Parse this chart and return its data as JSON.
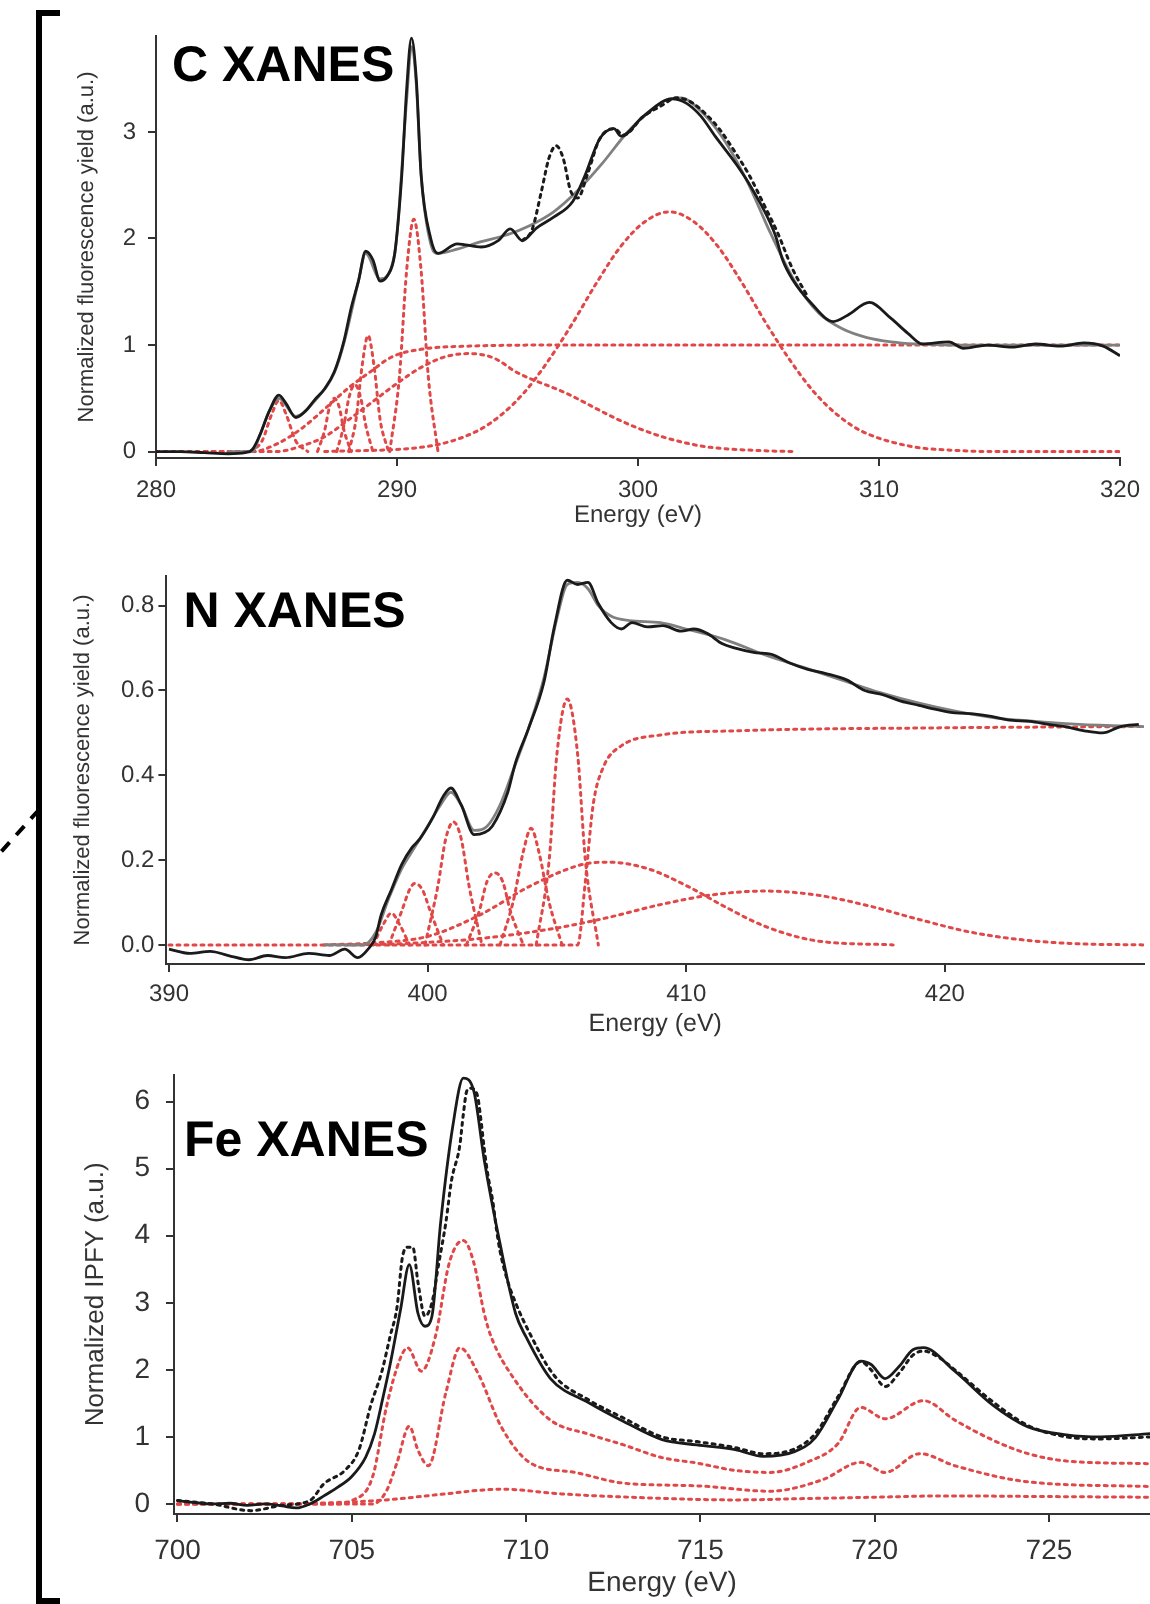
{
  "chart_data": [
    {
      "type": "line",
      "title": "C XANES",
      "xlabel": "Energy (eV)",
      "ylabel": "Normalized fluorescence yield (a.u.)",
      "xlim": [
        280,
        320
      ],
      "xticks": [
        280,
        290,
        300,
        310,
        320
      ],
      "ylim": [
        -0.06,
        3.9
      ],
      "yticks": [
        0,
        1,
        2,
        3
      ],
      "series": [
        {
          "color": "#1a1a1a",
          "line_style": "solid",
          "x": [
            280,
            281,
            282,
            283,
            283.7,
            284,
            284.3,
            284.7,
            285.1,
            285.4,
            285.8,
            286.2,
            286.6,
            287,
            287.4,
            287.8,
            288.1,
            288.4,
            288.7,
            289,
            289.3,
            289.6,
            289.9,
            290.2,
            290.4,
            290.6,
            290.8,
            291,
            291.4,
            291.7,
            292.5,
            293.5,
            294.2,
            294.7,
            295.2,
            295.8,
            296.5,
            297.3,
            297.8,
            298.4,
            299,
            299.3,
            300.2,
            301.4,
            302,
            302.6,
            303.2,
            304.1,
            304.7,
            305.7,
            306,
            306.4,
            307.2,
            308.1,
            308.7,
            309.6,
            310.5,
            311.2,
            311.8,
            312.9,
            313.5,
            314.5,
            315.5,
            316.5,
            317.5,
            318.5,
            319.3,
            320
          ],
          "values": [
            0,
            0,
            -0.01,
            -0.02,
            -0.01,
            0.02,
            0.15,
            0.38,
            0.53,
            0.45,
            0.32,
            0.38,
            0.49,
            0.59,
            0.75,
            1.04,
            1.35,
            1.6,
            1.88,
            1.8,
            1.6,
            1.65,
            1.85,
            2.6,
            3.4,
            3.88,
            3.5,
            2.6,
            2.0,
            1.86,
            1.95,
            1.92,
            1.98,
            2.09,
            1.98,
            2.1,
            2.2,
            2.35,
            2.59,
            2.93,
            3.03,
            2.96,
            3.14,
            3.31,
            3.27,
            3.15,
            2.96,
            2.69,
            2.48,
            2.03,
            1.8,
            1.62,
            1.39,
            1.22,
            1.28,
            1.4,
            1.25,
            1.11,
            1.01,
            1.03,
            0.97,
            1.0,
            0.98,
            1.01,
            0.99,
            1.02,
            0.99,
            0.9
          ]
        },
        {
          "color": "#1a1a1a",
          "line_style": "dotted",
          "x": [
            295.2,
            295.6,
            296,
            296.3,
            296.6,
            296.9,
            297.2,
            297.5,
            297.9,
            298.4,
            299,
            299.4,
            300.2,
            301,
            301.6,
            302.2,
            302.8,
            303.4,
            304,
            304.6,
            305.2,
            305.8,
            306.4,
            307
          ],
          "values": [
            1.98,
            2.08,
            2.45,
            2.75,
            2.87,
            2.75,
            2.45,
            2.38,
            2.6,
            2.93,
            3.03,
            2.97,
            3.14,
            3.25,
            3.32,
            3.28,
            3.17,
            3.02,
            2.82,
            2.6,
            2.33,
            2.05,
            1.72,
            1.47
          ]
        },
        {
          "color": "#808080",
          "line_style": "solid",
          "x": [
            283,
            284,
            284.3,
            284.7,
            285.1,
            285.8,
            286.6,
            287.4,
            287.8,
            288.4,
            288.7,
            289.3,
            289.9,
            290.4,
            290.6,
            290.8,
            291,
            291.4,
            291.7,
            292.5,
            293.5,
            294.5,
            295.5,
            296.5,
            297.5,
            298.5,
            299.5,
            300.5,
            301.3,
            301.8,
            302.5,
            303.5,
            304.5,
            305.5,
            306.5,
            307.5,
            308.5,
            309.5,
            310.5,
            311.5,
            313,
            320
          ],
          "values": [
            0,
            0,
            0.15,
            0.38,
            0.5,
            0.33,
            0.48,
            0.74,
            1.02,
            1.6,
            1.86,
            1.62,
            1.85,
            3.3,
            3.8,
            3.45,
            2.6,
            1.95,
            1.86,
            1.9,
            1.97,
            2.03,
            2.12,
            2.25,
            2.45,
            2.7,
            2.98,
            3.2,
            3.31,
            3.32,
            3.22,
            2.95,
            2.55,
            2.05,
            1.6,
            1.3,
            1.15,
            1.07,
            1.03,
            1.01,
            1.0,
            1.0
          ]
        },
        {
          "color": "#e04848",
          "line_style": "dotted",
          "x": [
            280,
            284,
            285,
            286,
            287,
            288,
            288.9,
            289.8,
            291,
            293,
            297,
            320
          ],
          "values": [
            0,
            0,
            0.07,
            0.21,
            0.4,
            0.6,
            0.75,
            0.89,
            0.96,
            0.99,
            1.0,
            1.0
          ]
        },
        {
          "color": "#e04848",
          "line_style": "dotted",
          "x": [
            283.9,
            284.4,
            284.8,
            285.1,
            285.4,
            285.8,
            286.3
          ],
          "values": [
            0,
            0.1,
            0.35,
            0.48,
            0.35,
            0.1,
            0
          ]
        },
        {
          "color": "#e04848",
          "line_style": "dotted",
          "x": [
            286.7,
            287,
            287.2,
            287.4,
            287.6,
            287.8,
            288.1
          ],
          "values": [
            0,
            0.2,
            0.42,
            0.5,
            0.42,
            0.2,
            0
          ]
        },
        {
          "color": "#e04848",
          "line_style": "dotted",
          "x": [
            287.5,
            287.8,
            288,
            288.25,
            288.5,
            288.7,
            289
          ],
          "values": [
            0,
            0.25,
            0.5,
            0.63,
            0.5,
            0.25,
            0
          ]
        },
        {
          "color": "#e04848",
          "line_style": "dotted",
          "x": [
            288,
            288.3,
            288.55,
            288.8,
            289.05,
            289.3,
            289.65
          ],
          "values": [
            0,
            0.3,
            0.8,
            1.09,
            0.8,
            0.3,
            0
          ]
        },
        {
          "color": "#e04848",
          "line_style": "dotted",
          "x": [
            289.7,
            290.1,
            290.4,
            290.7,
            291,
            291.3,
            291.7
          ],
          "values": [
            0,
            0.7,
            1.7,
            2.18,
            1.7,
            0.7,
            0
          ]
        },
        {
          "color": "#e04848",
          "line_style": "dotted",
          "x": [
            282,
            285,
            286,
            287,
            288,
            289,
            290,
            291,
            292,
            293,
            294,
            295,
            297,
            299,
            300,
            301,
            302,
            303,
            305,
            306.5
          ],
          "values": [
            0,
            0,
            0.05,
            0.14,
            0.3,
            0.47,
            0.64,
            0.79,
            0.89,
            0.92,
            0.88,
            0.74,
            0.55,
            0.32,
            0.22,
            0.14,
            0.08,
            0.04,
            0.01,
            0
          ]
        },
        {
          "color": "#e04848",
          "line_style": "dotted",
          "x": [
            287,
            291.3,
            293.3,
            294.3,
            295.3,
            296.3,
            297.3,
            298.3,
            299.3,
            300.3,
            301.3,
            302.3,
            303.3,
            304.3,
            305.3,
            306.3,
            307.3,
            308.3,
            309.3,
            311.3,
            313.3,
            315,
            320
          ],
          "values": [
            0,
            0.05,
            0.19,
            0.34,
            0.56,
            0.86,
            1.21,
            1.59,
            1.93,
            2.16,
            2.25,
            2.16,
            1.93,
            1.59,
            1.21,
            0.86,
            0.56,
            0.34,
            0.19,
            0.05,
            0.01,
            0,
            0
          ]
        }
      ]
    },
    {
      "type": "line",
      "title": "N XANES",
      "xlabel": "Energy (eV)",
      "ylabel": "Normalized fluorescence yield (a.u.)",
      "xlim": [
        389.9,
        427.7
      ],
      "xticks": [
        390,
        400,
        410,
        420
      ],
      "ylim": [
        -0.045,
        0.87
      ],
      "yticks": [
        {
          "value": 0,
          "label": "0.0"
        },
        0.2,
        0.4,
        0.6,
        0.8
      ],
      "series": [
        {
          "color": "#1a1a1a",
          "line_style": "solid",
          "x": [
            390,
            390.8,
            391.6,
            392.3,
            393.1,
            393.8,
            394.5,
            395.4,
            396.2,
            396.8,
            397.3,
            397.7,
            398,
            398.2,
            398.6,
            399,
            399.4,
            399.7,
            400.2,
            400.6,
            400.9,
            401.3,
            401.8,
            402.2,
            402.5,
            403.1,
            403.4,
            403.9,
            404.5,
            404.9,
            405.4,
            405.8,
            406.2,
            406.6,
            407.1,
            407.5,
            407.9,
            408.5,
            409.1,
            409.8,
            410.3,
            410.8,
            411.4,
            411.9,
            412.6,
            413.3,
            414,
            414.7,
            415.4,
            416.2,
            416.9,
            417.6,
            418.3,
            419,
            419.7,
            420.4,
            421.1,
            421.8,
            422.5,
            423.3,
            424,
            424.7,
            425.4,
            426.1,
            426.8,
            427.5
          ],
          "values": [
            -0.01,
            -0.02,
            -0.015,
            -0.025,
            -0.035,
            -0.025,
            -0.03,
            -0.02,
            -0.025,
            -0.01,
            -0.03,
            -0.01,
            0.02,
            0.07,
            0.13,
            0.19,
            0.23,
            0.25,
            0.3,
            0.35,
            0.37,
            0.33,
            0.26,
            0.265,
            0.28,
            0.36,
            0.43,
            0.51,
            0.62,
            0.75,
            0.86,
            0.85,
            0.855,
            0.805,
            0.76,
            0.745,
            0.76,
            0.75,
            0.753,
            0.74,
            0.745,
            0.735,
            0.71,
            0.7,
            0.69,
            0.685,
            0.665,
            0.65,
            0.64,
            0.625,
            0.6,
            0.59,
            0.575,
            0.565,
            0.555,
            0.547,
            0.545,
            0.539,
            0.53,
            0.527,
            0.52,
            0.514,
            0.505,
            0.5,
            0.515,
            0.52
          ]
        },
        {
          "color": "#808080",
          "line_style": "solid",
          "x": [
            396,
            397.5,
            398,
            398.5,
            399,
            399.5,
            400,
            400.5,
            400.9,
            401.3,
            401.8,
            402.3,
            402.8,
            403.3,
            403.9,
            404.5,
            405,
            405.4,
            405.8,
            406.2,
            406.6,
            407.1,
            407.8,
            409,
            410,
            411.5,
            413,
            414.5,
            416,
            417.5,
            419,
            420.5,
            422,
            424,
            426,
            427.7
          ],
          "values": [
            0,
            0,
            0.03,
            0.11,
            0.18,
            0.23,
            0.28,
            0.33,
            0.36,
            0.33,
            0.27,
            0.28,
            0.33,
            0.41,
            0.51,
            0.63,
            0.77,
            0.85,
            0.855,
            0.84,
            0.8,
            0.775,
            0.765,
            0.76,
            0.745,
            0.72,
            0.685,
            0.655,
            0.625,
            0.595,
            0.57,
            0.55,
            0.535,
            0.525,
            0.518,
            0.515
          ]
        },
        {
          "color": "#e04848",
          "line_style": "dotted",
          "x": [
            390,
            405.8,
            406.1,
            406.4,
            406.8,
            407.5,
            409,
            412,
            420,
            427.7
          ],
          "values": [
            0,
            0,
            0.15,
            0.33,
            0.42,
            0.47,
            0.495,
            0.505,
            0.512,
            0.515
          ]
        },
        {
          "color": "#e04848",
          "line_style": "dotted",
          "x": [
            404.2,
            404.7,
            405,
            405.4,
            405.8,
            406.1,
            406.6
          ],
          "values": [
            0,
            0.2,
            0.45,
            0.58,
            0.45,
            0.2,
            0
          ]
        },
        {
          "color": "#e04848",
          "line_style": "dotted",
          "x": [
            402.8,
            403.3,
            403.7,
            404,
            404.3,
            404.7,
            405.2
          ],
          "values": [
            0,
            0.1,
            0.22,
            0.275,
            0.22,
            0.1,
            0
          ]
        },
        {
          "color": "#e04848",
          "line_style": "dotted",
          "x": [
            401.5,
            402,
            402.3,
            402.6,
            402.9,
            403.2,
            403.7
          ],
          "values": [
            0,
            0.08,
            0.15,
            0.17,
            0.15,
            0.08,
            0
          ]
        },
        {
          "color": "#e04848",
          "line_style": "dotted",
          "x": [
            399.9,
            400.4,
            400.7,
            401,
            401.3,
            401.6,
            402.1
          ],
          "values": [
            0,
            0.14,
            0.25,
            0.29,
            0.25,
            0.14,
            0
          ]
        },
        {
          "color": "#e04848",
          "line_style": "dotted",
          "x": [
            398.5,
            399,
            399.3,
            399.5,
            399.8,
            400.1,
            400.6
          ],
          "values": [
            0,
            0.08,
            0.13,
            0.145,
            0.13,
            0.08,
            0
          ]
        },
        {
          "color": "#e04848",
          "line_style": "dotted",
          "x": [
            397.9,
            398.3,
            398.6,
            398.9,
            399.3
          ],
          "values": [
            0,
            0.05,
            0.075,
            0.05,
            0
          ]
        },
        {
          "color": "#e04848",
          "line_style": "dotted",
          "x": [
            396,
            398,
            400,
            402,
            404,
            406,
            407,
            408.5,
            410,
            411.5,
            413,
            415,
            418
          ],
          "values": [
            0,
            0.005,
            0.02,
            0.07,
            0.14,
            0.19,
            0.195,
            0.18,
            0.14,
            0.09,
            0.045,
            0.01,
            0
          ]
        },
        {
          "color": "#e04848",
          "line_style": "dotted",
          "x": [
            397,
            399,
            402,
            405,
            407,
            409,
            411,
            413,
            415,
            417,
            419,
            421,
            423,
            425,
            427.7
          ],
          "values": [
            0,
            0.003,
            0.015,
            0.04,
            0.065,
            0.095,
            0.118,
            0.127,
            0.118,
            0.093,
            0.06,
            0.03,
            0.012,
            0.003,
            0
          ]
        }
      ]
    },
    {
      "type": "line",
      "title": "Fe XANES",
      "xlabel": "Energy (eV)",
      "ylabel": "Normalized IPFY (a.u.)",
      "xlim": [
        699.9,
        727.9
      ],
      "xticks": [
        700,
        705,
        710,
        715,
        720,
        725
      ],
      "ylim": [
        -0.15,
        6.4
      ],
      "yticks": [
        0,
        1,
        2,
        3,
        4,
        5,
        6
      ],
      "series": [
        {
          "color": "#1a1a1a",
          "line_style": "solid",
          "x": [
            700,
            700.5,
            701,
            701.5,
            702,
            702.5,
            703,
            703.4,
            703.8,
            704.2,
            704.6,
            705,
            705.4,
            705.65,
            705.9,
            706.1,
            706.4,
            706.65,
            706.9,
            707.1,
            707.3,
            707.55,
            707.9,
            708.2,
            708.5,
            708.8,
            709.25,
            709.7,
            710,
            710.7,
            711.8,
            712.8,
            713.9,
            714.9,
            716,
            716.8,
            717.7,
            718.3,
            718.95,
            719.6,
            719.9,
            720.3,
            720.7,
            721.1,
            721.4,
            722.3,
            723.4,
            724.4,
            725.5,
            726.5,
            727.9
          ],
          "values": [
            0.05,
            0.02,
            0,
            0.01,
            -0.02,
            0,
            -0.03,
            -0.06,
            0,
            0.12,
            0.25,
            0.41,
            0.7,
            1.04,
            1.6,
            2.08,
            2.9,
            3.57,
            2.84,
            2.65,
            2.8,
            4.2,
            5.64,
            6.35,
            6.16,
            5.13,
            3.89,
            2.84,
            2.49,
            1.87,
            1.51,
            1.23,
            0.96,
            0.88,
            0.81,
            0.71,
            0.78,
            0.99,
            1.56,
            2.13,
            2.08,
            1.87,
            2.05,
            2.3,
            2.33,
            1.98,
            1.47,
            1.15,
            1.03,
            1.0,
            1.05
          ]
        },
        {
          "color": "#1a1a1a",
          "line_style": "dotted",
          "x": [
            700,
            701,
            702.1,
            703,
            703.8,
            704.2,
            704.8,
            705.2,
            705.55,
            705.86,
            706.1,
            706.3,
            706.45,
            706.6,
            706.75,
            706.9,
            707.1,
            707.3,
            707.5,
            707.7,
            707.86,
            708.1,
            708.2,
            708.3,
            708.4,
            708.6,
            708.7,
            708.8,
            708.9,
            709.05,
            709.15,
            709.25,
            709.45,
            709.7,
            710.1,
            710.8,
            711.8,
            712.8,
            713.9,
            714.9,
            716,
            716.8,
            717.7,
            718.3,
            718.95,
            719.6,
            719.9,
            720.3,
            720.7,
            721.1,
            721.4,
            721.8,
            722.3,
            723.4,
            724.4,
            725.5,
            726.5,
            727.9
          ],
          "values": [
            0.05,
            0,
            -0.1,
            -0.02,
            0.05,
            0.3,
            0.5,
            0.8,
            1.48,
            1.97,
            2.5,
            2.94,
            3.67,
            3.83,
            3.83,
            3.3,
            2.8,
            3.0,
            3.6,
            4.2,
            4.82,
            5.35,
            5.81,
            6.16,
            6.2,
            6.1,
            5.75,
            5.3,
            4.92,
            4.5,
            4.1,
            3.78,
            3.36,
            3.0,
            2.55,
            1.92,
            1.55,
            1.28,
            1.0,
            0.93,
            0.84,
            0.75,
            0.82,
            1.05,
            1.6,
            2.12,
            2.0,
            1.75,
            1.95,
            2.22,
            2.28,
            2.2,
            2.0,
            1.52,
            1.17,
            1.0,
            0.97,
            1.0
          ]
        },
        {
          "color": "#e04848",
          "line_style": "dotted",
          "x": [
            700,
            704.5,
            705,
            705.6,
            706,
            706.4,
            706.6,
            707,
            707.4,
            707.8,
            708.2,
            708.5,
            708.8,
            709,
            709.65,
            710.7,
            711.8,
            712.8,
            713.9,
            714.9,
            716,
            717,
            718.1,
            718.95,
            719.6,
            720.3,
            721.4,
            722.3,
            723.4,
            724.4,
            725.5,
            727.9
          ],
          "values": [
            0,
            0,
            0.05,
            0.41,
            1.46,
            2.18,
            2.33,
            1.98,
            2.5,
            3.6,
            3.93,
            3.6,
            2.84,
            2.49,
            1.87,
            1.25,
            1.04,
            0.88,
            0.69,
            0.61,
            0.5,
            0.47,
            0.63,
            0.9,
            1.44,
            1.27,
            1.54,
            1.25,
            0.95,
            0.75,
            0.64,
            0.6
          ]
        },
        {
          "color": "#e04848",
          "line_style": "dotted",
          "x": [
            700,
            705.6,
            706,
            706.3,
            706.65,
            706.9,
            707.2,
            707.7,
            708.1,
            708.6,
            709.3,
            710.1,
            711.4,
            712.8,
            714.9,
            717,
            718.5,
            719.6,
            720.3,
            721.3,
            722.3,
            724.4,
            727.9
          ],
          "values": [
            0,
            0,
            0.2,
            0.62,
            1.16,
            0.8,
            0.57,
            1.66,
            2.33,
            1.97,
            1.14,
            0.62,
            0.47,
            0.31,
            0.27,
            0.19,
            0.36,
            0.62,
            0.47,
            0.75,
            0.57,
            0.33,
            0.26
          ]
        },
        {
          "color": "#e04848",
          "line_style": "dotted",
          "x": [
            700,
            703,
            704.5,
            706,
            707.5,
            709.3,
            711,
            713,
            716,
            718,
            720,
            722,
            725,
            727.9
          ],
          "values": [
            0,
            0,
            0.02,
            0.06,
            0.14,
            0.22,
            0.15,
            0.1,
            0.06,
            0.08,
            0.1,
            0.12,
            0.11,
            0.1
          ]
        }
      ]
    }
  ]
}
